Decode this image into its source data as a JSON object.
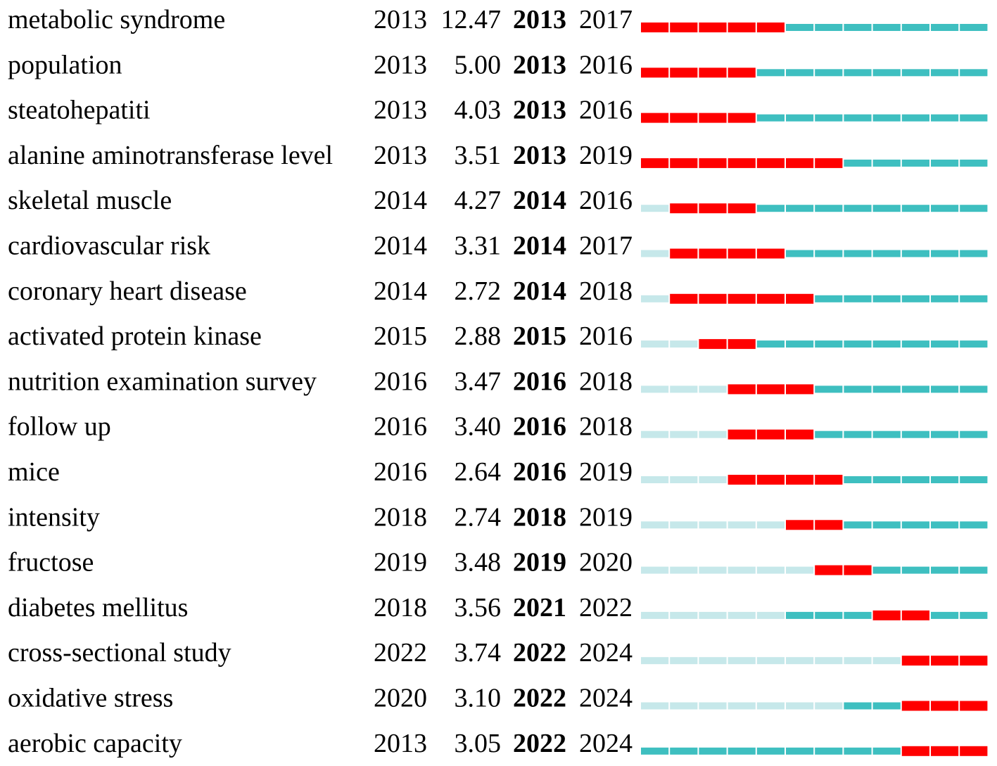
{
  "chart_data": {
    "type": "table",
    "title": "",
    "timeline": {
      "start": 2013,
      "end": 2024
    },
    "colors": {
      "burst": "#ff0000",
      "active": "#3ebfc0",
      "inactive": "#c6e8ea"
    },
    "rows": [
      {
        "keyword": "metabolic syndrome",
        "year": "2013",
        "strength": "12.47",
        "begin": "2013",
        "end": "2017"
      },
      {
        "keyword": "population",
        "year": "2013",
        "strength": "5.00",
        "begin": "2013",
        "end": "2016"
      },
      {
        "keyword": "steatohepatiti",
        "year": "2013",
        "strength": "4.03",
        "begin": "2013",
        "end": "2016"
      },
      {
        "keyword": "alanine aminotransferase level",
        "year": "2013",
        "strength": "3.51",
        "begin": "2013",
        "end": "2019"
      },
      {
        "keyword": "skeletal muscle",
        "year": "2014",
        "strength": "4.27",
        "begin": "2014",
        "end": "2016"
      },
      {
        "keyword": "cardiovascular risk",
        "year": "2014",
        "strength": "3.31",
        "begin": "2014",
        "end": "2017"
      },
      {
        "keyword": "coronary heart disease",
        "year": "2014",
        "strength": "2.72",
        "begin": "2014",
        "end": "2018"
      },
      {
        "keyword": "activated protein kinase",
        "year": "2015",
        "strength": "2.88",
        "begin": "2015",
        "end": "2016"
      },
      {
        "keyword": "nutrition examination survey",
        "year": "2016",
        "strength": "3.47",
        "begin": "2016",
        "end": "2018"
      },
      {
        "keyword": "follow up",
        "year": "2016",
        "strength": "3.40",
        "begin": "2016",
        "end": "2018"
      },
      {
        "keyword": "mice",
        "year": "2016",
        "strength": "2.64",
        "begin": "2016",
        "end": "2019"
      },
      {
        "keyword": "intensity",
        "year": "2018",
        "strength": "2.74",
        "begin": "2018",
        "end": "2019"
      },
      {
        "keyword": "fructose",
        "year": "2019",
        "strength": "3.48",
        "begin": "2019",
        "end": "2020"
      },
      {
        "keyword": "diabetes mellitus",
        "year": "2018",
        "strength": "3.56",
        "begin": "2021",
        "end": "2022"
      },
      {
        "keyword": "cross-sectional study",
        "year": "2022",
        "strength": "3.74",
        "begin": "2022",
        "end": "2024"
      },
      {
        "keyword": "oxidative stress",
        "year": "2020",
        "strength": "3.10",
        "begin": "2022",
        "end": "2024"
      },
      {
        "keyword": "aerobic capacity",
        "year": "2013",
        "strength": "3.05",
        "begin": "2022",
        "end": "2024"
      }
    ]
  }
}
